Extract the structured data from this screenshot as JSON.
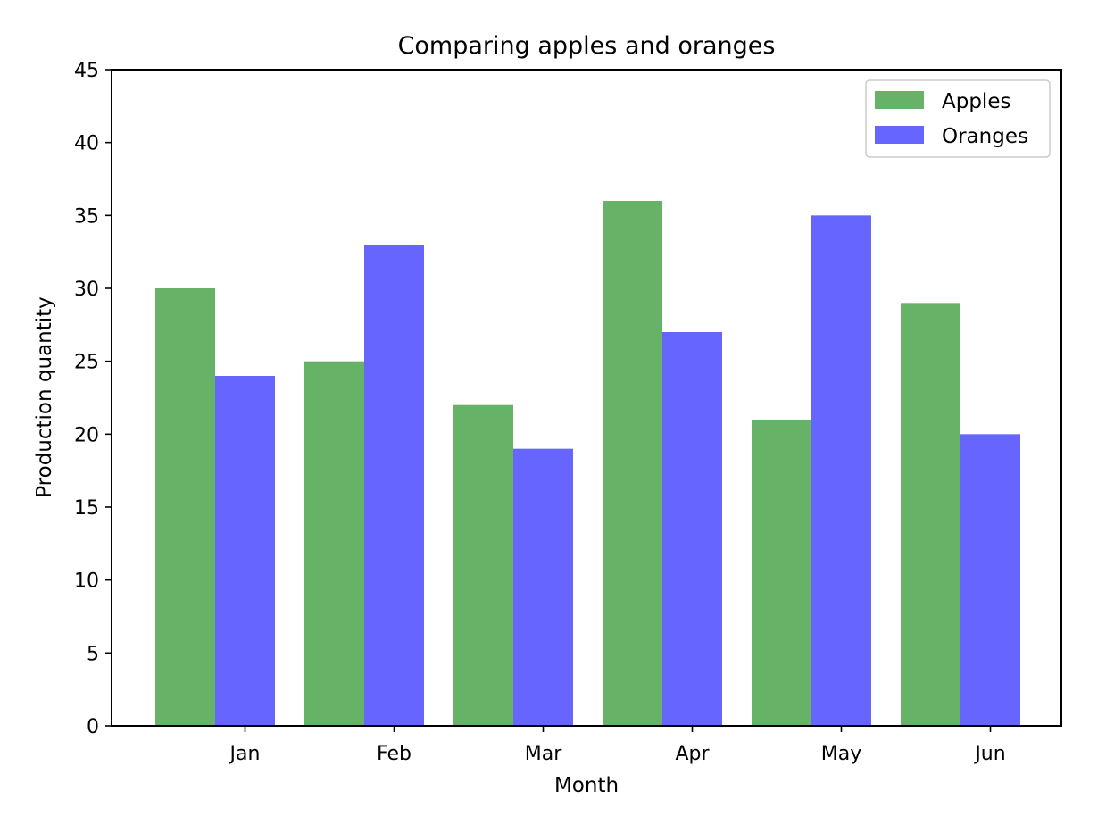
{
  "chart_data": {
    "type": "bar",
    "title": "Comparing apples and oranges",
    "xlabel": "Month",
    "ylabel": "Production quantity",
    "categories": [
      "Jan",
      "Feb",
      "Mar",
      "Apr",
      "May",
      "Jun"
    ],
    "series": [
      {
        "name": "Apples",
        "color": "#66b266",
        "values": [
          30,
          25,
          22,
          36,
          21,
          29
        ]
      },
      {
        "name": "Oranges",
        "color": "#6666ff",
        "values": [
          24,
          33,
          19,
          27,
          35,
          20
        ]
      }
    ],
    "ylim": [
      0,
      45
    ],
    "yticks": [
      0,
      5,
      10,
      15,
      20,
      25,
      30,
      35,
      40,
      45
    ],
    "grid": false,
    "legend_position": "top-right"
  }
}
